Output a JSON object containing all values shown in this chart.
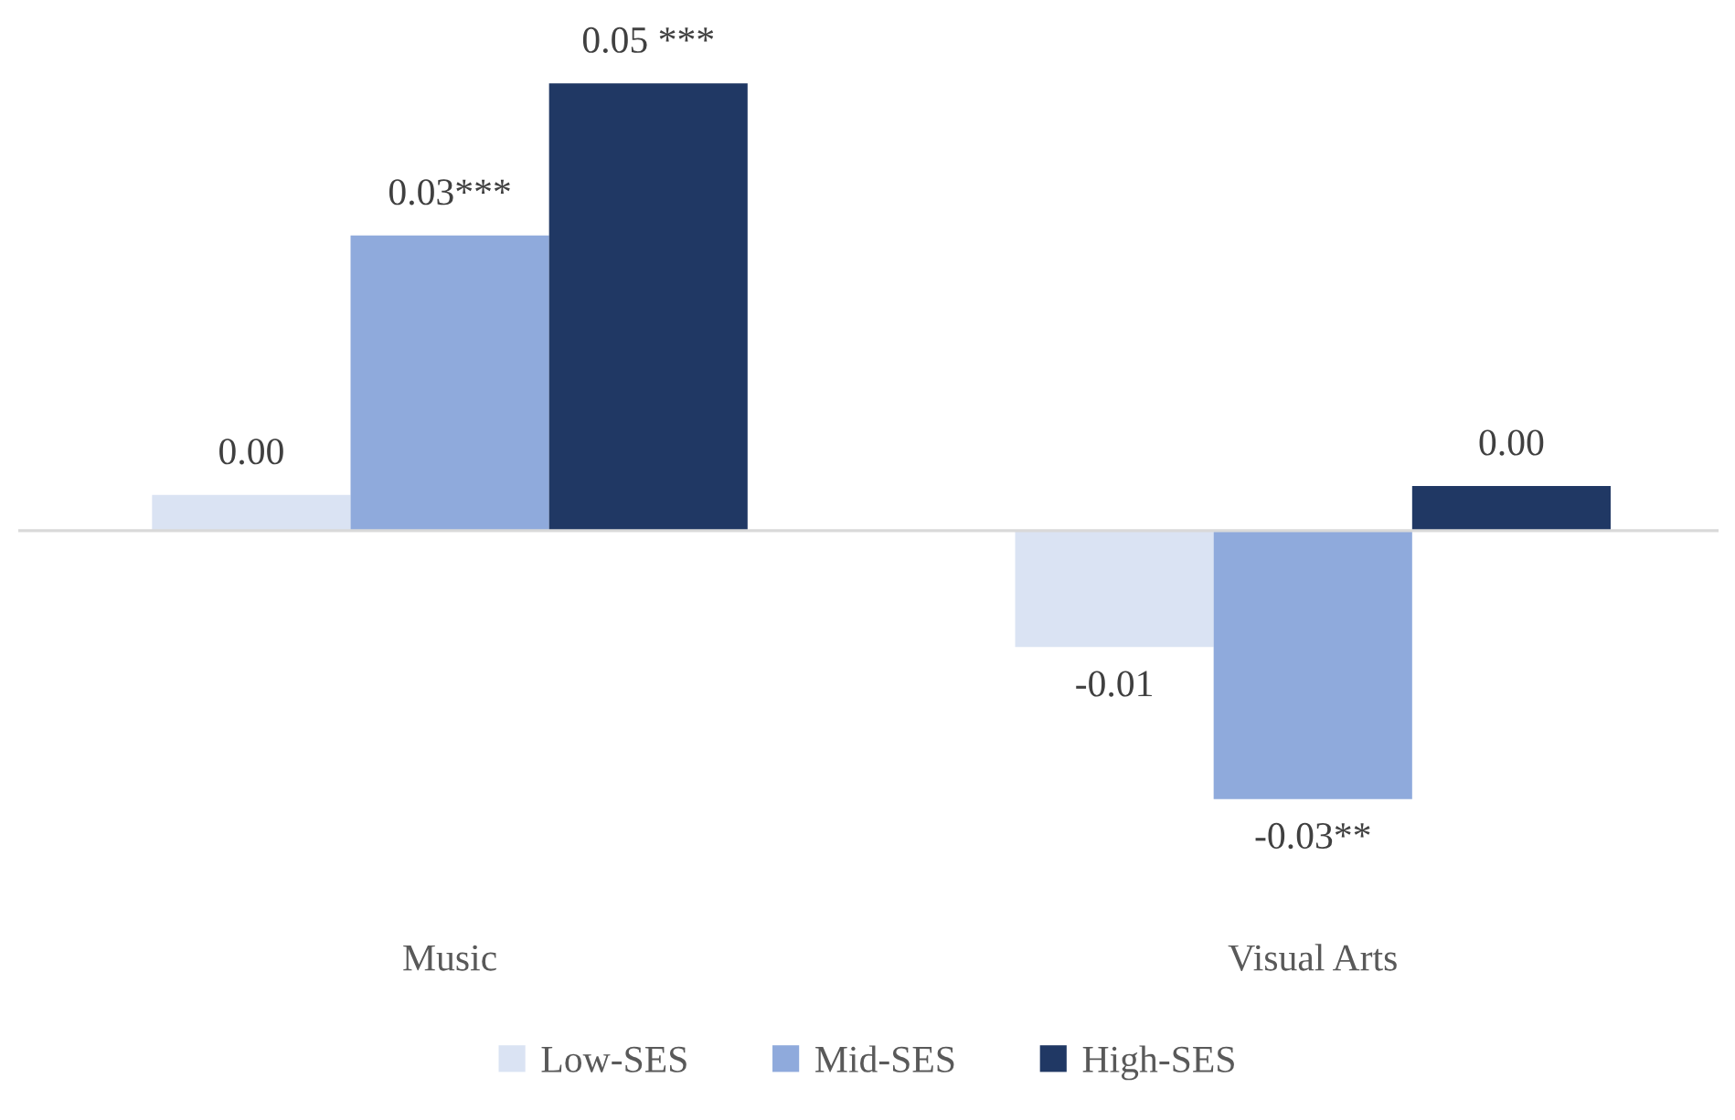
{
  "chart_data": {
    "type": "bar",
    "categories": [
      "Music",
      "Visual Arts"
    ],
    "series": [
      {
        "name": "Low-SES",
        "color": "#dae3f3",
        "values": [
          0.004,
          -0.013
        ],
        "value_labels": [
          "0.00",
          "-0.01"
        ]
      },
      {
        "name": "Mid-SES",
        "color": "#8faadc",
        "values": [
          0.033,
          -0.03
        ],
        "value_labels": [
          "0.03***",
          "-0.03**"
        ]
      },
      {
        "name": "High-SES",
        "color": "#203864",
        "values": [
          0.05,
          0.005
        ],
        "value_labels": [
          "0.05 ***",
          "0.00"
        ]
      }
    ],
    "legend": "bottom",
    "grid": false,
    "tick_labels": "x"
  }
}
